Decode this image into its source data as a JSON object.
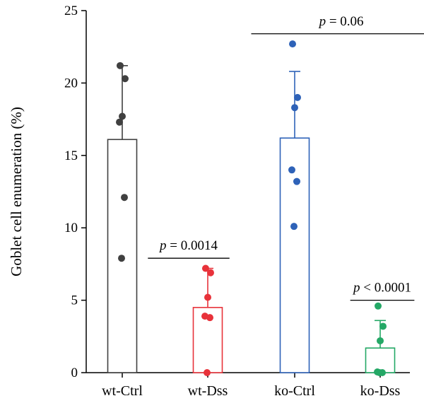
{
  "chart_data": {
    "type": "bar",
    "ylabel": "Goblet cell enumeration (%)",
    "xlabel": "",
    "ylim": [
      0,
      25
    ],
    "yticks": [
      0,
      5,
      10,
      15,
      20,
      25
    ],
    "grid": false,
    "categories": [
      "wt-Ctrl",
      "wt-Dss",
      "ko-Ctrl",
      "ko-Dss"
    ],
    "bars": [
      {
        "category": "wt-Ctrl",
        "mean": 16.1,
        "sd_upper": 21.2,
        "color": "#404040",
        "points": [
          21.2,
          20.3,
          17.7,
          17.3,
          12.1,
          7.9
        ]
      },
      {
        "category": "wt-Dss",
        "mean": 4.5,
        "sd_upper": 7.2,
        "color": "#e8323a",
        "points": [
          7.2,
          6.9,
          5.2,
          3.9,
          3.8,
          0.0
        ]
      },
      {
        "category": "ko-Ctrl",
        "mean": 16.2,
        "sd_upper": 20.8,
        "color": "#2e62b8",
        "points": [
          22.7,
          19.0,
          18.3,
          14.0,
          13.2,
          10.1
        ]
      },
      {
        "category": "ko-Dss",
        "mean": 1.7,
        "sd_upper": 3.6,
        "color": "#24a866",
        "points": [
          4.6,
          3.2,
          2.2,
          0.05,
          0.0,
          0.0
        ]
      }
    ],
    "annotations": [
      {
        "p": "p",
        "rest": " = 0.06",
        "from": 1.5,
        "to": 3.6,
        "y": 23.4
      },
      {
        "p": "p",
        "rest": " = 0.0014",
        "from": 0.3,
        "to": 1.25,
        "y": 7.9
      },
      {
        "p": "p",
        "rest": " < 0.0001",
        "from": 2.65,
        "to": 3.4,
        "y": 5.0
      }
    ]
  }
}
